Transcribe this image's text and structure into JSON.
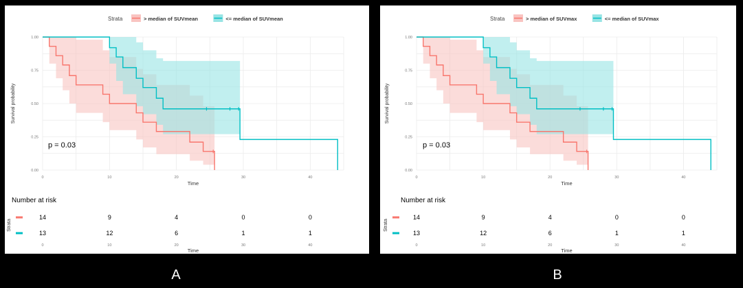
{
  "panel_labels": [
    "A",
    "B"
  ],
  "chart_data": [
    {
      "type": "line",
      "subtype": "kaplan-meier",
      "legend_title": "Strata",
      "legend_position": "top",
      "ylabel": "Survival probability",
      "xlabel": "Time",
      "ylim": [
        0,
        1
      ],
      "yticks": [
        "0.00",
        "0.25",
        "0.50",
        "0.75",
        "1.00"
      ],
      "xticks": [
        "0",
        "10",
        "20",
        "30",
        "40"
      ],
      "xlim": [
        0,
        45
      ],
      "grid": true,
      "pvalue": "p = 0.03",
      "series": [
        {
          "name": "> median of SUVmean",
          "color": "#f8766d",
          "fill": "#f9c4c1",
          "x": [
            0,
            1,
            2,
            3,
            4,
            5,
            7,
            9,
            10,
            12,
            14,
            15,
            16,
            17,
            18,
            19,
            22,
            23,
            24,
            25,
            25.7
          ],
          "y": [
            1.0,
            0.93,
            0.86,
            0.79,
            0.71,
            0.64,
            0.64,
            0.57,
            0.5,
            0.5,
            0.43,
            0.36,
            0.36,
            0.29,
            0.29,
            0.29,
            0.21,
            0.21,
            0.14,
            0.14,
            0.0
          ],
          "lower": [
            1.0,
            0.8,
            0.69,
            0.6,
            0.5,
            0.43,
            0.43,
            0.36,
            0.3,
            0.3,
            0.23,
            0.17,
            0.17,
            0.12,
            0.12,
            0.12,
            0.07,
            0.07,
            0.04,
            0.04,
            0.0
          ],
          "upper": [
            1.0,
            1.0,
            1.0,
            1.0,
            1.0,
            0.98,
            0.98,
            0.9,
            0.85,
            0.85,
            0.76,
            0.72,
            0.72,
            0.64,
            0.64,
            0.64,
            0.56,
            0.56,
            0.48,
            0.48,
            0.0
          ],
          "censor": [
            25.5
          ]
        },
        {
          "name": "<= median of SUVmean",
          "color": "#00bfc4",
          "fill": "#98e4e4",
          "x": [
            0,
            9,
            10,
            11,
            12,
            14,
            15,
            17,
            18,
            20,
            25,
            28,
            29,
            29.5,
            44,
            44.1
          ],
          "y": [
            1.0,
            1.0,
            0.92,
            0.85,
            0.77,
            0.69,
            0.62,
            0.54,
            0.46,
            0.46,
            0.46,
            0.46,
            0.46,
            0.23,
            0.23,
            0.0
          ],
          "lower": [
            1.0,
            1.0,
            0.8,
            0.67,
            0.57,
            0.48,
            0.42,
            0.34,
            0.27,
            0.27,
            0.27,
            0.27,
            0.27,
            0.23,
            0.23,
            0.0
          ],
          "upper": [
            1.0,
            1.0,
            1.0,
            1.0,
            1.0,
            0.96,
            0.9,
            0.84,
            0.82,
            0.82,
            0.82,
            0.82,
            0.82,
            0.23,
            0.23,
            0.0
          ],
          "censor": [
            24.5,
            28,
            29.3
          ]
        }
      ],
      "risk_table": {
        "title": "Number at risk",
        "ylabel": "Strata",
        "xlabel": "Time",
        "times": [
          "0",
          "10",
          "20",
          "30",
          "40"
        ],
        "rows": [
          {
            "color": "#f8766d",
            "values": [
              "14",
              "9",
              "4",
              "0",
              "0"
            ]
          },
          {
            "color": "#00bfc4",
            "values": [
              "13",
              "12",
              "6",
              "1",
              "1"
            ]
          }
        ]
      }
    },
    {
      "type": "line",
      "subtype": "kaplan-meier",
      "legend_title": "Strata",
      "legend_position": "top",
      "ylabel": "Survival probability",
      "xlabel": "Time",
      "ylim": [
        0,
        1
      ],
      "yticks": [
        "0.00",
        "0.25",
        "0.50",
        "0.75",
        "1.00"
      ],
      "xticks": [
        "0",
        "10",
        "20",
        "30",
        "40"
      ],
      "xlim": [
        0,
        45
      ],
      "grid": true,
      "pvalue": "p = 0.03",
      "series": [
        {
          "name": "> median of SUVmax",
          "color": "#f8766d",
          "fill": "#f9c4c1",
          "x": [
            0,
            1,
            2,
            3,
            4,
            5,
            7,
            9,
            10,
            12,
            14,
            15,
            16,
            17,
            18,
            19,
            22,
            23,
            24,
            25,
            25.7
          ],
          "y": [
            1.0,
            0.93,
            0.86,
            0.79,
            0.71,
            0.64,
            0.64,
            0.57,
            0.5,
            0.5,
            0.43,
            0.36,
            0.36,
            0.29,
            0.29,
            0.29,
            0.21,
            0.21,
            0.14,
            0.14,
            0.0
          ],
          "lower": [
            1.0,
            0.8,
            0.69,
            0.6,
            0.5,
            0.43,
            0.43,
            0.36,
            0.3,
            0.3,
            0.23,
            0.17,
            0.17,
            0.12,
            0.12,
            0.12,
            0.07,
            0.07,
            0.04,
            0.04,
            0.0
          ],
          "upper": [
            1.0,
            1.0,
            1.0,
            1.0,
            1.0,
            0.98,
            0.98,
            0.9,
            0.85,
            0.85,
            0.76,
            0.72,
            0.72,
            0.64,
            0.64,
            0.64,
            0.56,
            0.56,
            0.48,
            0.48,
            0.0
          ],
          "censor": [
            25.5
          ]
        },
        {
          "name": "<= median of SUVmax",
          "color": "#00bfc4",
          "fill": "#98e4e4",
          "x": [
            0,
            9,
            10,
            11,
            12,
            14,
            15,
            17,
            18,
            20,
            25,
            28,
            29,
            29.5,
            44,
            44.1
          ],
          "y": [
            1.0,
            1.0,
            0.92,
            0.85,
            0.77,
            0.69,
            0.62,
            0.54,
            0.46,
            0.46,
            0.46,
            0.46,
            0.46,
            0.23,
            0.23,
            0.0
          ],
          "lower": [
            1.0,
            1.0,
            0.8,
            0.67,
            0.57,
            0.48,
            0.42,
            0.34,
            0.27,
            0.27,
            0.27,
            0.27,
            0.27,
            0.23,
            0.23,
            0.0
          ],
          "upper": [
            1.0,
            1.0,
            1.0,
            1.0,
            1.0,
            0.96,
            0.9,
            0.84,
            0.82,
            0.82,
            0.82,
            0.82,
            0.82,
            0.23,
            0.23,
            0.0
          ],
          "censor": [
            24.5,
            28,
            29.3
          ]
        }
      ],
      "risk_table": {
        "title": "Number at risk",
        "ylabel": "Strata",
        "xlabel": "Time",
        "times": [
          "0",
          "10",
          "20",
          "30",
          "40"
        ],
        "rows": [
          {
            "color": "#f8766d",
            "values": [
              "14",
              "9",
              "4",
              "0",
              "0"
            ]
          },
          {
            "color": "#00bfc4",
            "values": [
              "13",
              "12",
              "6",
              "1",
              "1"
            ]
          }
        ]
      }
    }
  ]
}
